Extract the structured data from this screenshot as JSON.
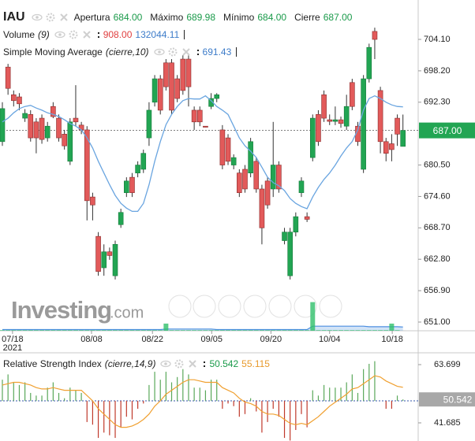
{
  "chart_data": [
    {
      "type": "candlestick",
      "symbol": "IAU",
      "ohlc_labels": [
        {
          "name": "Apertura",
          "value": "684.00"
        },
        {
          "name": "Máximo",
          "value": "689.98"
        },
        {
          "name": "Mínimo",
          "value": "684.00"
        },
        {
          "name": "Cierre",
          "value": "687.00"
        }
      ],
      "open": [
        684.9,
        698.9,
        693.7,
        693.3,
        689.3,
        690.0,
        688.6,
        689.3,
        685.6,
        691.5,
        689.3,
        686.3,
        681.2,
        689.3,
        688.0,
        687.1,
        674.5,
        667.1,
        661.2,
        664.2,
        659.7,
        669.3,
        675.3,
        678.2,
        679.0,
        679.7,
        685.6,
        692.3,
        696.7,
        699.7,
        699.7,
        696.7,
        700.4,
        700.4,
        690.8,
        690.8,
        687.8,
        691.5,
        693.0,
        687.1,
        685.6,
        680.5,
        679.0,
        679.7,
        679.0,
        681.2,
        676.0,
        677.5,
        676.0,
        680.5,
        666.3,
        659.7,
        667.9,
        675.3,
        670.8,
        681.9,
        690.0,
        693.7,
        689.0,
        688.7,
        689.0,
        687.8,
        696.0,
        687.8,
        679.7,
        696.7,
        705.6,
        694.5,
        684.9,
        684.5,
        689.3,
        684
      ],
      "high": [
        692.3,
        699.5,
        694.5,
        694.0,
        691.0,
        690.8,
        689.3,
        690.0,
        688.6,
        692.3,
        690.0,
        687.1,
        689.3,
        695.5,
        688.6,
        687.8,
        675.3,
        667.9,
        665.6,
        665.0,
        666.3,
        672.3,
        678.2,
        679.0,
        681.2,
        683.4,
        692.3,
        697.4,
        697.4,
        700.4,
        700.4,
        697.4,
        701.1,
        701.1,
        691.5,
        691.5,
        687.8,
        694.0,
        694.0,
        688.0,
        686.3,
        682.5,
        679.7,
        680.5,
        685.6,
        682.0,
        676.8,
        678.2,
        688.6,
        681.2,
        668.7,
        668.7,
        671.6,
        678.2,
        671.6,
        690.0,
        690.8,
        694.5,
        690.0,
        691.5,
        689.6,
        693.7,
        696.7,
        688.6,
        697.4,
        703.3,
        706.3,
        695.2,
        685.6,
        686.3,
        690.0,
        689.98
      ],
      "low": [
        684.1,
        693.7,
        691.5,
        690.8,
        688.6,
        684.9,
        682.7,
        684.5,
        684.9,
        689.3,
        684.9,
        683.4,
        680.5,
        687.8,
        686.3,
        670.1,
        670.1,
        659.7,
        659.7,
        662.7,
        659.0,
        668.7,
        674.5,
        674.5,
        678.2,
        679.0,
        684.1,
        691.5,
        690.0,
        694.5,
        690.0,
        692.3,
        693.7,
        691.5,
        687.1,
        687.8,
        687.6,
        691.0,
        692.3,
        679.7,
        680.5,
        679.7,
        674.5,
        675.3,
        678.2,
        675.3,
        665.6,
        672.3,
        674.5,
        675.3,
        665.6,
        659.0,
        667.1,
        674.5,
        669.8,
        681.2,
        684.1,
        688.6,
        688.0,
        688.0,
        687.5,
        687.1,
        690.8,
        684.1,
        679.0,
        696.0,
        700.4,
        682.7,
        681.2,
        681.2,
        684.1,
        684
      ],
      "close": [
        691.1,
        694.9,
        692.6,
        692.0,
        690.2,
        685.6,
        685.6,
        685.3,
        687.8,
        689.6,
        685.6,
        684.1,
        688.6,
        688.6,
        687.1,
        673.8,
        673.0,
        660.5,
        664.2,
        663.5,
        665.6,
        671.6,
        677.5,
        675.3,
        680.5,
        682.7,
        690.8,
        696.7,
        690.8,
        695.2,
        690.8,
        693.0,
        694.5,
        695.2,
        688.6,
        688.6,
        687.6,
        693.0,
        693.7,
        680.5,
        681.2,
        681.9,
        675.3,
        676.0,
        684.9,
        676.0,
        668.7,
        673.0,
        680.5,
        676.0,
        667.9,
        667.9,
        670.8,
        677.5,
        670.3,
        689.3,
        684.9,
        689.3,
        688.7,
        689.0,
        688.3,
        691.5,
        691.5,
        684.9,
        696.7,
        702.6,
        704.1,
        684.9,
        682.7,
        683.4,
        686.3,
        687
      ],
      "up_color": "#22a553",
      "down_color": "#e25a5a",
      "last_price_label": "687.00",
      "ylim": [
        649.37,
        711.5
      ],
      "yticks": [
        {
          "value": 704.1,
          "label": "704.10"
        },
        {
          "value": 698.2,
          "label": "698.20"
        },
        {
          "value": 692.3,
          "label": "692.30"
        },
        {
          "value": 680.5,
          "label": "680.50"
        },
        {
          "value": 674.6,
          "label": "674.60"
        },
        {
          "value": 668.7,
          "label": "668.70"
        },
        {
          "value": 662.8,
          "label": "662.80"
        },
        {
          "value": 656.9,
          "label": "656.90"
        },
        {
          "value": 651,
          "label": "651.00"
        }
      ],
      "xlim": [
        -0.42,
        73.7
      ],
      "xticks": [
        {
          "value": 1.8,
          "label": "07/18"
        },
        {
          "value": 15.8,
          "label": "08/08"
        },
        {
          "value": 26.6,
          "label": "08/22"
        },
        {
          "value": 37.1,
          "label": "09/05"
        },
        {
          "value": 47.6,
          "label": "09/20"
        },
        {
          "value": 58.0,
          "label": "10/04"
        },
        {
          "value": 69.1,
          "label": "10/18"
        }
      ],
      "year_label": "2021",
      "watermark": [
        "Investing",
        ".com"
      ],
      "sma": {
        "name": "Simple Moving Average",
        "params": "(cierre,10)",
        "value_label": "691.43",
        "color": "#6aa5e0",
        "values": [
          688.6,
          689.3,
          690.3,
          691.1,
          691.5,
          691.7,
          691.2,
          690.8,
          690.3,
          690.0,
          689.6,
          689.0,
          688.3,
          687.8,
          687.1,
          685.6,
          683.7,
          681.2,
          679.0,
          676.8,
          674.8,
          673.3,
          672.4,
          671.8,
          671.8,
          673.3,
          676.8,
          681.2,
          684.9,
          688.1,
          690.0,
          691.5,
          692.6,
          693.0,
          692.9,
          692.9,
          693.5,
          692.6,
          691.5,
          690.8,
          690.0,
          687.8,
          685.6,
          684.1,
          683.1,
          681.9,
          680.1,
          678.2,
          677.2,
          676.6,
          675.7,
          674.2,
          673.3,
          672.7,
          672.3,
          674.5,
          676.3,
          677.8,
          679.0,
          680.5,
          682.2,
          683.7,
          684.9,
          687.1,
          690.8,
          693.0,
          693.5,
          693.0,
          692.3,
          691.8,
          691.5,
          691.43
        ]
      },
      "volume": {
        "name": "Volume",
        "params": "(9)",
        "value_label": "908.00",
        "ma_label": "132044.11",
        "bar_color": "#2fbf6a",
        "ma_color": "#4d8fe0",
        "lim": [
          0,
          1100000
        ],
        "values": [
          20000,
          20000,
          20000,
          20000,
          20000,
          20000,
          20000,
          20000,
          20000,
          20000,
          20000,
          20000,
          20000,
          20000,
          20000,
          20000,
          20000,
          20000,
          20000,
          20000,
          20000,
          20000,
          20000,
          20000,
          20000,
          20000,
          20000,
          20000,
          20000,
          250000,
          20000,
          20000,
          20000,
          20000,
          20000,
          20000,
          20000,
          20000,
          20000,
          20000,
          20000,
          20000,
          20000,
          20000,
          20000,
          20000,
          20000,
          20000,
          20000,
          20000,
          20000,
          20000,
          20000,
          20000,
          20000,
          1000000,
          20000,
          20000,
          20000,
          20000,
          20000,
          20000,
          20000,
          20000,
          20000,
          20000,
          20000,
          20000,
          20000,
          250000,
          20000,
          908
        ],
        "ma_values": [
          40000,
          40000,
          40000,
          40000,
          40000,
          40000,
          40000,
          40000,
          40000,
          40000,
          40000,
          40000,
          40000,
          40000,
          40000,
          40000,
          40000,
          40000,
          40000,
          40000,
          40000,
          40000,
          40000,
          40000,
          40000,
          40000,
          40000,
          40000,
          40000,
          60000,
          60000,
          60000,
          60000,
          60000,
          60000,
          60000,
          60000,
          60000,
          40000,
          40000,
          40000,
          40000,
          40000,
          40000,
          40000,
          40000,
          40000,
          40000,
          40000,
          40000,
          40000,
          40000,
          40000,
          40000,
          40000,
          160000,
          160000,
          160000,
          160000,
          160000,
          160000,
          160000,
          160000,
          160000,
          160000,
          140000,
          140000,
          140000,
          140000,
          140000,
          140000,
          132044.11
        ]
      }
    },
    {
      "type": "rsi",
      "title": "Relative Strength Index",
      "params": "(cierre,14,9)",
      "value_label": "50.542",
      "signal_label": "55.115",
      "baseline": 50,
      "up_color": "#5aa85a",
      "down_color": "#c0392b",
      "signal_color": "#f0a030",
      "values": [
        58,
        60,
        57,
        56,
        57,
        53,
        52,
        52,
        55,
        57,
        53,
        51,
        55,
        54,
        53,
        42,
        41,
        36,
        38,
        37,
        36,
        40,
        44,
        43,
        47,
        49,
        56,
        61,
        58,
        61,
        57,
        59,
        62,
        60,
        55,
        55,
        54,
        58,
        58,
        47,
        49,
        48,
        44,
        45,
        51,
        46,
        38,
        42,
        47,
        44,
        36,
        35,
        39,
        45,
        40,
        54,
        52,
        56,
        55,
        55,
        55,
        57,
        60,
        53,
        62,
        64,
        65,
        50,
        47,
        47,
        52,
        50.542
      ],
      "signal": [
        56,
        56.5,
        57,
        57,
        56.5,
        56,
        55,
        54.5,
        54.5,
        55,
        54.5,
        54,
        54,
        54,
        54,
        52,
        50,
        47,
        45,
        43,
        41,
        40,
        40,
        40.5,
        41.5,
        43,
        45,
        48,
        50,
        52.5,
        54,
        55.5,
        57,
        58,
        58,
        57.5,
        57,
        57,
        57,
        55,
        54,
        53,
        51,
        49.5,
        49,
        48,
        46,
        45,
        45,
        44.5,
        43,
        41.5,
        41,
        41.5,
        41,
        42.5,
        44,
        46,
        48,
        49.5,
        51,
        52.5,
        54.5,
        55,
        56.5,
        58,
        59.5,
        59,
        57.5,
        56.5,
        55.5,
        55.115
      ],
      "ylim": [
        34.83,
        67.57
      ],
      "yticks": [
        63.699,
        41.685
      ]
    }
  ]
}
